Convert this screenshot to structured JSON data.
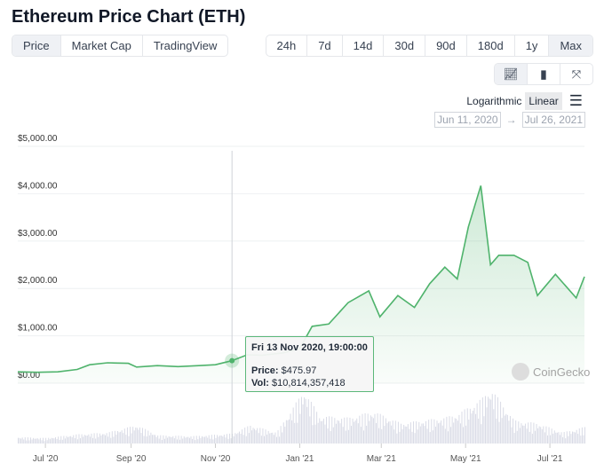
{
  "title": "Ethereum Price Chart (ETH)",
  "tabs": [
    {
      "label": "Price",
      "active": true
    },
    {
      "label": "Market Cap"
    },
    {
      "label": "TradingView"
    }
  ],
  "ranges": [
    {
      "label": "24h"
    },
    {
      "label": "7d"
    },
    {
      "label": "14d"
    },
    {
      "label": "30d"
    },
    {
      "label": "90d"
    },
    {
      "label": "180d"
    },
    {
      "label": "1y"
    },
    {
      "label": "Max",
      "active": true
    }
  ],
  "chart_types": [
    "line-chart-icon",
    "candlestick-icon",
    "fullscreen-icon"
  ],
  "scale": {
    "log": "Logarithmic",
    "linear": "Linear",
    "active": "Linear"
  },
  "date_range": {
    "from": "Jun 11, 2020",
    "arrow": "→",
    "to": "Jul 26, 2021"
  },
  "tooltip": {
    "date": "Fri 13 Nov 2020, 19:00:00",
    "price_label": "Price:",
    "price": "$475.97",
    "vol_label": "Vol:",
    "vol": "$10,814,357,418"
  },
  "watermark": "CoinGecko",
  "colors": {
    "line": "#4fb36c",
    "accent": "#5cb87a",
    "volume": "#d9dbe6"
  },
  "chart_data": {
    "type": "line",
    "ylim": [
      0,
      5000
    ],
    "xlim": [
      "2020-06-11",
      "2021-07-26"
    ],
    "grid": true,
    "yticks": [
      "$0.00",
      "$1,000.00",
      "$2,000.00",
      "$3,000.00",
      "$4,000.00",
      "$5,000.00"
    ],
    "xticks": [
      {
        "label": "Jul '20",
        "date": "2020-07-01"
      },
      {
        "label": "Sep '20",
        "date": "2020-09-01"
      },
      {
        "label": "Nov '20",
        "date": "2020-11-01"
      },
      {
        "label": "Jan '21",
        "date": "2021-01-01"
      },
      {
        "label": "Mar '21",
        "date": "2021-03-01"
      },
      {
        "label": "May '21",
        "date": "2021-05-01"
      },
      {
        "label": "Jul '21",
        "date": "2021-07-01"
      }
    ],
    "price": [
      [
        "2020-06-11",
        240
      ],
      [
        "2020-06-25",
        230
      ],
      [
        "2020-07-10",
        240
      ],
      [
        "2020-07-24",
        290
      ],
      [
        "2020-08-02",
        390
      ],
      [
        "2020-08-15",
        430
      ],
      [
        "2020-08-30",
        420
      ],
      [
        "2020-09-05",
        340
      ],
      [
        "2020-09-20",
        370
      ],
      [
        "2020-10-05",
        350
      ],
      [
        "2020-10-20",
        370
      ],
      [
        "2020-11-01",
        390
      ],
      [
        "2020-11-13",
        476
      ],
      [
        "2020-11-24",
        600
      ],
      [
        "2020-12-05",
        590
      ],
      [
        "2020-12-20",
        640
      ],
      [
        "2021-01-01",
        730
      ],
      [
        "2021-01-10",
        1200
      ],
      [
        "2021-01-22",
        1250
      ],
      [
        "2021-02-05",
        1700
      ],
      [
        "2021-02-20",
        1950
      ],
      [
        "2021-02-28",
        1400
      ],
      [
        "2021-03-13",
        1850
      ],
      [
        "2021-03-25",
        1600
      ],
      [
        "2021-04-05",
        2100
      ],
      [
        "2021-04-16",
        2450
      ],
      [
        "2021-04-25",
        2200
      ],
      [
        "2021-05-03",
        3300
      ],
      [
        "2021-05-12",
        4170
      ],
      [
        "2021-05-19",
        2500
      ],
      [
        "2021-05-25",
        2700
      ],
      [
        "2021-06-05",
        2700
      ],
      [
        "2021-06-15",
        2550
      ],
      [
        "2021-06-22",
        1850
      ],
      [
        "2021-07-05",
        2300
      ],
      [
        "2021-07-20",
        1800
      ],
      [
        "2021-07-26",
        2250
      ]
    ],
    "volume_billions": [
      [
        "2020-06-11",
        7
      ],
      [
        "2020-07-01",
        6
      ],
      [
        "2020-07-24",
        10
      ],
      [
        "2020-08-15",
        12
      ],
      [
        "2020-09-05",
        20
      ],
      [
        "2020-09-20",
        9
      ],
      [
        "2020-10-15",
        8
      ],
      [
        "2020-11-13",
        10.8
      ],
      [
        "2020-11-26",
        20
      ],
      [
        "2020-12-15",
        12
      ],
      [
        "2021-01-04",
        58
      ],
      [
        "2021-01-15",
        30
      ],
      [
        "2021-02-05",
        28
      ],
      [
        "2021-02-23",
        35
      ],
      [
        "2021-03-15",
        22
      ],
      [
        "2021-04-15",
        28
      ],
      [
        "2021-04-25",
        32
      ],
      [
        "2021-05-12",
        48
      ],
      [
        "2021-05-19",
        60
      ],
      [
        "2021-06-05",
        25
      ],
      [
        "2021-06-22",
        22
      ],
      [
        "2021-07-10",
        12
      ],
      [
        "2021-07-26",
        18
      ]
    ]
  }
}
